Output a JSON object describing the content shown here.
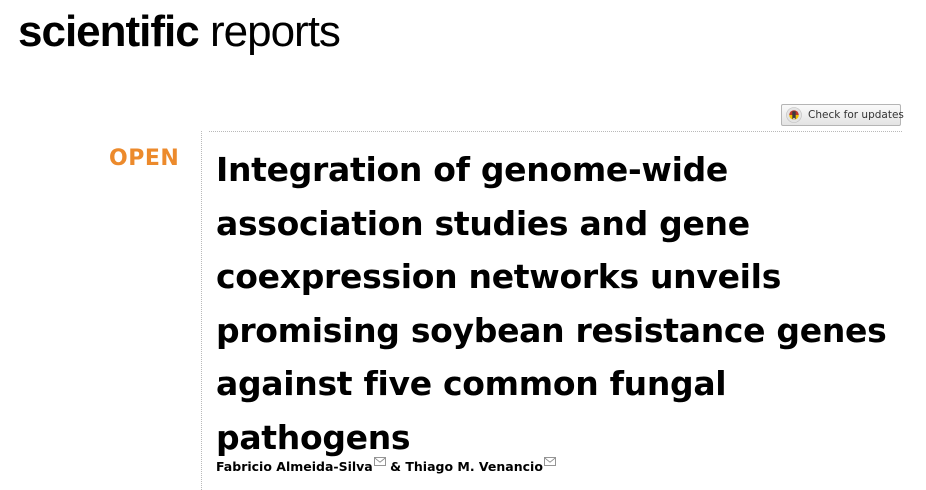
{
  "journal": {
    "name_bold": "scientific",
    "name_light": " reports"
  },
  "check_updates": {
    "label": "Check for updates",
    "icon": "crossmark-icon"
  },
  "article": {
    "access_label": "OPEN",
    "title": "Integration of genome-wide association studies and gene coexpression networks unveils promising soybean resistance genes against five common fungal pathogens",
    "authors": [
      {
        "name": "Fabricio Almeida-Silva",
        "corresponding_icon": "envelope-icon"
      },
      {
        "name": "Thiago M. Venancio",
        "corresponding_icon": "envelope-icon"
      }
    ],
    "author_separator": " & "
  },
  "colors": {
    "open_accent": "#ec8a2c",
    "text": "#000000"
  }
}
